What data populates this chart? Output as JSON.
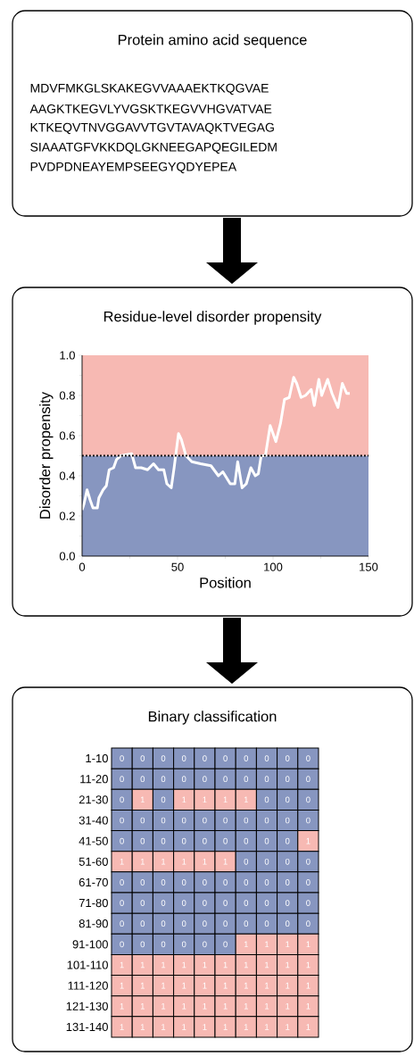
{
  "chart_data": [
    {
      "type": "other",
      "title": "Protein amino acid sequence",
      "annotations": [
        "MDVFMKGLSKAKEGVVAAAEKTKQGVAE",
        "AAGKTKEGVLYVGSKTKEGVVHGVATVAE",
        "KTKEQVTNVGGAVVTGVTAVAQKTVEGAG",
        "SIAAATGFVKKDQLGKNEEGAPQEGILEDM",
        "PVDPDNEAYEMPSEEGYQDYEPEA"
      ]
    },
    {
      "type": "line",
      "title": "Residue-level disorder propensity",
      "xlabel": "Position",
      "ylabel": "Disorder propensity",
      "xlim": [
        0,
        150
      ],
      "xticks": [
        0,
        50,
        100,
        150
      ],
      "ylim": [
        0,
        1
      ],
      "yticks": [
        {
          "value": 0,
          "label": "0.0"
        },
        0.2,
        0.4,
        0.6,
        0.8,
        {
          "value": 1,
          "label": "1.0"
        }
      ],
      "bands": [
        {
          "axis": "y",
          "from": 0,
          "to": 0.5,
          "color": "#8796c0"
        },
        {
          "axis": "y",
          "from": 0.5,
          "to": 1,
          "color": "#f7b9b3"
        }
      ],
      "ref_lines": [
        {
          "axis": "y",
          "value": 0.5,
          "color": "#000000",
          "line_style": "dotted"
        }
      ],
      "series": [
        {
          "color": "#ffffff",
          "x": [
            0,
            1,
            2.6,
            4.2,
            5.7,
            8,
            8.8,
            11,
            12.7,
            14.2,
            16.5,
            18,
            20.4,
            26,
            28,
            31,
            34.3,
            37.4,
            40,
            42.8,
            44.4,
            46.7,
            48.2,
            50.5,
            52,
            54.4,
            57.5,
            62,
            67.5,
            71.4,
            73.7,
            77.6,
            80,
            81.5,
            83.8,
            86,
            88.4,
            90.7,
            92.3,
            93.8,
            96,
            98.5,
            101.5,
            103.9,
            106,
            108.5,
            110.8,
            112.4,
            114.7,
            117,
            120,
            121.6,
            124,
            125.5,
            128.6,
            130.9,
            134,
            136.3,
            138.6,
            140.2
          ],
          "values": [
            0.23,
            0.26,
            0.33,
            0.28,
            0.24,
            0.24,
            0.29,
            0.33,
            0.35,
            0.43,
            0.44,
            0.48,
            0.5,
            0.51,
            0.44,
            0.44,
            0.43,
            0.46,
            0.43,
            0.43,
            0.36,
            0.34,
            0.44,
            0.61,
            0.58,
            0.5,
            0.47,
            0.46,
            0.45,
            0.4,
            0.42,
            0.36,
            0.36,
            0.47,
            0.34,
            0.36,
            0.44,
            0.4,
            0.41,
            0.5,
            0.5,
            0.65,
            0.57,
            0.66,
            0.78,
            0.79,
            0.89,
            0.86,
            0.79,
            0.8,
            0.83,
            0.75,
            0.88,
            0.8,
            0.88,
            0.81,
            0.74,
            0.86,
            0.81,
            0.81
          ]
        }
      ]
    },
    {
      "type": "heatmap",
      "title": "Binary classification",
      "data_labels": true,
      "colors": [
        "#8796c0",
        "#f7b9b3"
      ],
      "categories": [
        null,
        null,
        null,
        null,
        null,
        null,
        null,
        null,
        null,
        null
      ],
      "y_categories": [
        "1-10",
        "11-20",
        "21-30",
        "31-40",
        "41-50",
        "51-60",
        "61-70",
        "71-80",
        "81-90",
        "91-100",
        "101-110",
        "111-120",
        "121-130",
        "131-140"
      ],
      "cells": [
        [
          0,
          0,
          0,
          0,
          0,
          0,
          0,
          0,
          0,
          0
        ],
        [
          0,
          0,
          0,
          0,
          0,
          0,
          0,
          0,
          0,
          0
        ],
        [
          0,
          1,
          0,
          1,
          1,
          1,
          1,
          0,
          0,
          0
        ],
        [
          0,
          0,
          0,
          0,
          0,
          0,
          0,
          0,
          0,
          0
        ],
        [
          0,
          0,
          0,
          0,
          0,
          0,
          0,
          0,
          0,
          1
        ],
        [
          1,
          1,
          1,
          1,
          1,
          1,
          0,
          0,
          0,
          0
        ],
        [
          0,
          0,
          0,
          0,
          0,
          0,
          0,
          0,
          0,
          0
        ],
        [
          0,
          0,
          0,
          0,
          0,
          0,
          0,
          0,
          0,
          0
        ],
        [
          0,
          0,
          0,
          0,
          0,
          0,
          0,
          0,
          0,
          0
        ],
        [
          0,
          0,
          0,
          0,
          0,
          0,
          1,
          1,
          1,
          1
        ],
        [
          1,
          1,
          1,
          1,
          1,
          1,
          1,
          1,
          1,
          1
        ],
        [
          1,
          1,
          1,
          1,
          1,
          1,
          1,
          1,
          1,
          1
        ],
        [
          1,
          1,
          1,
          1,
          1,
          1,
          1,
          1,
          1,
          1
        ],
        [
          1,
          1,
          1,
          1,
          1,
          1,
          1,
          1,
          1,
          1
        ]
      ]
    }
  ]
}
